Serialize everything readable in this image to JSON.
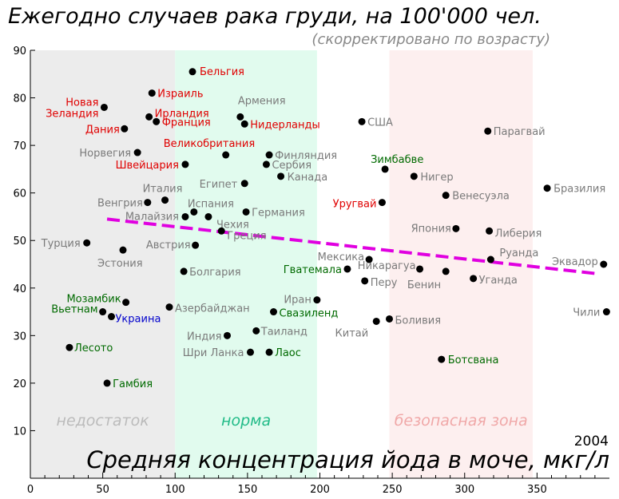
{
  "chart_data": {
    "type": "scatter",
    "title": "Ежегодно случаев рака груди, на 100'000 чел.",
    "subtitle": "(скорректировано по возрасту)",
    "xlabel": "Средняя концентрация йода в моче, мкг/л",
    "year": "2004",
    "xlim": [
      0,
      400
    ],
    "ylim": [
      0,
      90
    ],
    "xticks": [
      0,
      50,
      100,
      150,
      200,
      250,
      300,
      350
    ],
    "yticks": [
      10,
      20,
      30,
      40,
      50,
      60,
      70,
      80,
      90
    ],
    "zones": [
      {
        "label": "недостаток",
        "from": 0,
        "to": 100,
        "fill": "#ececec",
        "text_color": "#bbbbbb"
      },
      {
        "label": "норма",
        "from": 100,
        "to": 198,
        "fill": "#e1fbee",
        "text_color": "#22bb88"
      },
      {
        "label": "безопасная зона",
        "from": 248,
        "to": 347,
        "fill": "#fdefef",
        "text_color": "#f0a8a8"
      }
    ],
    "colors": {
      "gray": "#7a7a7a",
      "red": "#e00000",
      "green": "#006a00",
      "blue": "#0000cc",
      "trend": "#e000e0"
    },
    "trend": {
      "x": [
        53,
        392
      ],
      "y": [
        54.5,
        43
      ]
    },
    "points": [
      {
        "label": "Бельгия",
        "x": 112,
        "y": 85.5,
        "color": "red"
      },
      {
        "label": "Израиль",
        "x": 84,
        "y": 81,
        "color": "red"
      },
      {
        "label": "Новая\nЗеландия",
        "x": 51,
        "y": 78,
        "color": "red"
      },
      {
        "label": "Ирландия",
        "x": 82,
        "y": 76,
        "color": "red"
      },
      {
        "label": "Франция",
        "x": 87,
        "y": 75,
        "color": "red"
      },
      {
        "label": "Дания",
        "x": 65,
        "y": 73.5,
        "color": "red"
      },
      {
        "label": "Армения",
        "x": 145,
        "y": 76,
        "color": "gray"
      },
      {
        "label": "Нидерланды",
        "x": 148,
        "y": 74.5,
        "color": "red"
      },
      {
        "label": "США",
        "x": 229,
        "y": 75,
        "color": "gray"
      },
      {
        "label": "Парагвай",
        "x": 316,
        "y": 73,
        "color": "gray"
      },
      {
        "label": "Норвегия",
        "x": 74,
        "y": 68.5,
        "color": "gray"
      },
      {
        "label": "Великобритания",
        "x": 135,
        "y": 68,
        "color": "red"
      },
      {
        "label": "Финляндия",
        "x": 165,
        "y": 68,
        "color": "gray"
      },
      {
        "label": "Швейцария",
        "x": 107,
        "y": 66,
        "color": "red"
      },
      {
        "label": "Сербия",
        "x": 163,
        "y": 66,
        "color": "gray"
      },
      {
        "label": "Зимбабве",
        "x": 245,
        "y": 65,
        "color": "green"
      },
      {
        "label": "Нигер",
        "x": 265,
        "y": 63.5,
        "color": "gray"
      },
      {
        "label": "Канада",
        "x": 173,
        "y": 63.5,
        "color": "gray"
      },
      {
        "label": "Египет",
        "x": 148,
        "y": 62,
        "color": "gray"
      },
      {
        "label": "Бразилия",
        "x": 357,
        "y": 61,
        "color": "gray"
      },
      {
        "label": "Италия",
        "x": 93,
        "y": 58.5,
        "color": "gray"
      },
      {
        "label": "Венесуэла",
        "x": 287,
        "y": 59.5,
        "color": "gray"
      },
      {
        "label": "Венгрия",
        "x": 81,
        "y": 58,
        "color": "gray"
      },
      {
        "label": "Испания",
        "x": 113,
        "y": 56,
        "color": "gray"
      },
      {
        "label": "Уругвай",
        "x": 243,
        "y": 58,
        "color": "red"
      },
      {
        "label": "Германия",
        "x": 149,
        "y": 56,
        "color": "gray"
      },
      {
        "label": "Малайзия",
        "x": 107,
        "y": 55,
        "color": "gray"
      },
      {
        "label": "Чехия",
        "x": 123,
        "y": 55,
        "color": "gray"
      },
      {
        "label": "Япония",
        "x": 294,
        "y": 52.5,
        "color": "gray"
      },
      {
        "label": "Либерия",
        "x": 317,
        "y": 52,
        "color": "gray"
      },
      {
        "label": "Греция",
        "x": 132,
        "y": 52,
        "color": "gray"
      },
      {
        "label": "Турция",
        "x": 39,
        "y": 49.5,
        "color": "gray"
      },
      {
        "label": "Австрия",
        "x": 114,
        "y": 49,
        "color": "gray"
      },
      {
        "label": "Эстония",
        "x": 64,
        "y": 48,
        "color": "gray"
      },
      {
        "label": "Мексика",
        "x": 234,
        "y": 46,
        "color": "gray"
      },
      {
        "label": "Руанда",
        "x": 318,
        "y": 46,
        "color": "gray"
      },
      {
        "label": "Эквадор",
        "x": 396,
        "y": 45,
        "color": "gray"
      },
      {
        "label": "Никарагуа",
        "x": 269,
        "y": 44,
        "color": "gray"
      },
      {
        "label": "Гватемала",
        "x": 219,
        "y": 44,
        "color": "green"
      },
      {
        "label": "Болгария",
        "x": 106,
        "y": 43.5,
        "color": "gray"
      },
      {
        "label": "Бенин",
        "x": 287,
        "y": 43.5,
        "color": "gray"
      },
      {
        "label": "Уганда",
        "x": 306,
        "y": 42,
        "color": "gray"
      },
      {
        "label": "Перу",
        "x": 231,
        "y": 41.5,
        "color": "gray"
      },
      {
        "label": "Иран",
        "x": 198,
        "y": 37.5,
        "color": "gray"
      },
      {
        "label": "Мозамбик",
        "x": 66,
        "y": 37,
        "color": "green"
      },
      {
        "label": "Азербайджан",
        "x": 96,
        "y": 36,
        "color": "gray"
      },
      {
        "label": "Вьетнам",
        "x": 50,
        "y": 35,
        "color": "green"
      },
      {
        "label": "Свазиленд",
        "x": 168,
        "y": 35,
        "color": "green"
      },
      {
        "label": "Чили",
        "x": 398,
        "y": 35,
        "color": "gray"
      },
      {
        "label": "Украина",
        "x": 56,
        "y": 34,
        "color": "blue"
      },
      {
        "label": "Боливия",
        "x": 248,
        "y": 33.5,
        "color": "gray"
      },
      {
        "label": "Китай",
        "x": 239,
        "y": 33,
        "color": "gray"
      },
      {
        "label": "Таиланд",
        "x": 156,
        "y": 31,
        "color": "gray"
      },
      {
        "label": "Индия",
        "x": 136,
        "y": 30,
        "color": "gray"
      },
      {
        "label": "Лесото",
        "x": 27,
        "y": 27.5,
        "color": "green"
      },
      {
        "label": "Шри Ланка",
        "x": 152,
        "y": 26.5,
        "color": "gray"
      },
      {
        "label": "Лаос",
        "x": 165,
        "y": 26.5,
        "color": "green"
      },
      {
        "label": "Ботсвана",
        "x": 284,
        "y": 25,
        "color": "green"
      },
      {
        "label": "Гамбия",
        "x": 53,
        "y": 20,
        "color": "green"
      }
    ]
  }
}
